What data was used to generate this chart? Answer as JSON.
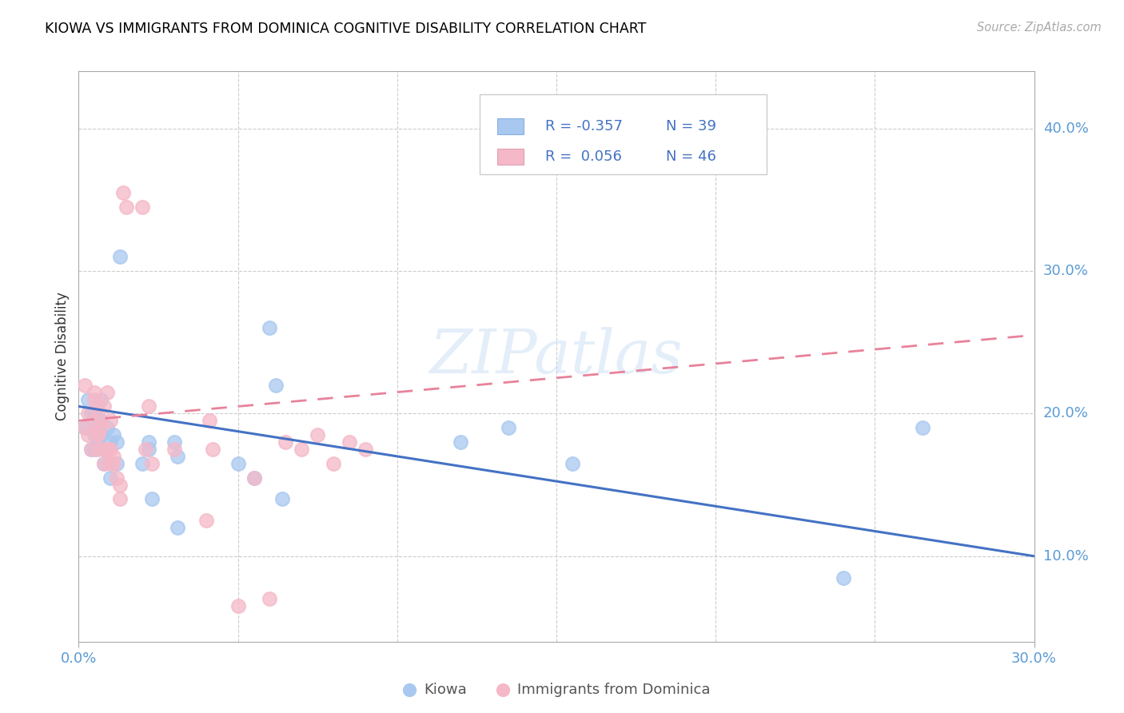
{
  "title": "KIOWA VS IMMIGRANTS FROM DOMINICA COGNITIVE DISABILITY CORRELATION CHART",
  "source": "Source: ZipAtlas.com",
  "ylabel": "Cognitive Disability",
  "ylabel_ticks": [
    "10.0%",
    "20.0%",
    "30.0%",
    "40.0%"
  ],
  "ylabel_tick_vals": [
    0.1,
    0.2,
    0.3,
    0.4
  ],
  "xlim": [
    0.0,
    0.3
  ],
  "ylim": [
    0.04,
    0.44
  ],
  "color_kiowa": "#a8c8f0",
  "color_dominica": "#f5b8c8",
  "color_line_kiowa": "#4472c4",
  "color_line_dominica": "#e8829a",
  "watermark": "ZIPatlas",
  "kiowa_trend_x": [
    0.0,
    0.3
  ],
  "kiowa_trend_y": [
    0.205,
    0.1
  ],
  "dominica_trend_x": [
    0.0,
    0.3
  ],
  "dominica_trend_y": [
    0.195,
    0.255
  ],
  "kiowa_x": [
    0.002,
    0.003,
    0.004,
    0.004,
    0.005,
    0.005,
    0.005,
    0.006,
    0.006,
    0.007,
    0.007,
    0.007,
    0.008,
    0.008,
    0.008,
    0.009,
    0.01,
    0.01,
    0.011,
    0.012,
    0.012,
    0.013,
    0.02,
    0.022,
    0.022,
    0.023,
    0.03,
    0.031,
    0.031,
    0.05,
    0.055,
    0.06,
    0.062,
    0.064,
    0.12,
    0.135,
    0.155,
    0.24,
    0.265
  ],
  "kiowa_y": [
    0.19,
    0.21,
    0.2,
    0.175,
    0.175,
    0.2,
    0.185,
    0.195,
    0.18,
    0.21,
    0.195,
    0.185,
    0.175,
    0.175,
    0.165,
    0.19,
    0.18,
    0.155,
    0.185,
    0.165,
    0.18,
    0.31,
    0.165,
    0.18,
    0.175,
    0.14,
    0.18,
    0.17,
    0.12,
    0.165,
    0.155,
    0.26,
    0.22,
    0.14,
    0.18,
    0.19,
    0.165,
    0.085,
    0.19
  ],
  "dominica_x": [
    0.002,
    0.002,
    0.003,
    0.003,
    0.004,
    0.005,
    0.005,
    0.005,
    0.006,
    0.006,
    0.006,
    0.006,
    0.007,
    0.007,
    0.008,
    0.008,
    0.008,
    0.009,
    0.009,
    0.01,
    0.01,
    0.01,
    0.011,
    0.011,
    0.012,
    0.013,
    0.013,
    0.014,
    0.015,
    0.02,
    0.021,
    0.022,
    0.023,
    0.03,
    0.04,
    0.041,
    0.042,
    0.05,
    0.055,
    0.06,
    0.065,
    0.07,
    0.075,
    0.08,
    0.085,
    0.09
  ],
  "dominica_y": [
    0.19,
    0.22,
    0.2,
    0.185,
    0.175,
    0.195,
    0.215,
    0.21,
    0.185,
    0.205,
    0.185,
    0.175,
    0.19,
    0.195,
    0.205,
    0.175,
    0.165,
    0.175,
    0.215,
    0.195,
    0.175,
    0.165,
    0.17,
    0.165,
    0.155,
    0.14,
    0.15,
    0.355,
    0.345,
    0.345,
    0.175,
    0.205,
    0.165,
    0.175,
    0.125,
    0.195,
    0.175,
    0.065,
    0.155,
    0.07,
    0.18,
    0.175,
    0.185,
    0.165,
    0.18,
    0.175
  ]
}
